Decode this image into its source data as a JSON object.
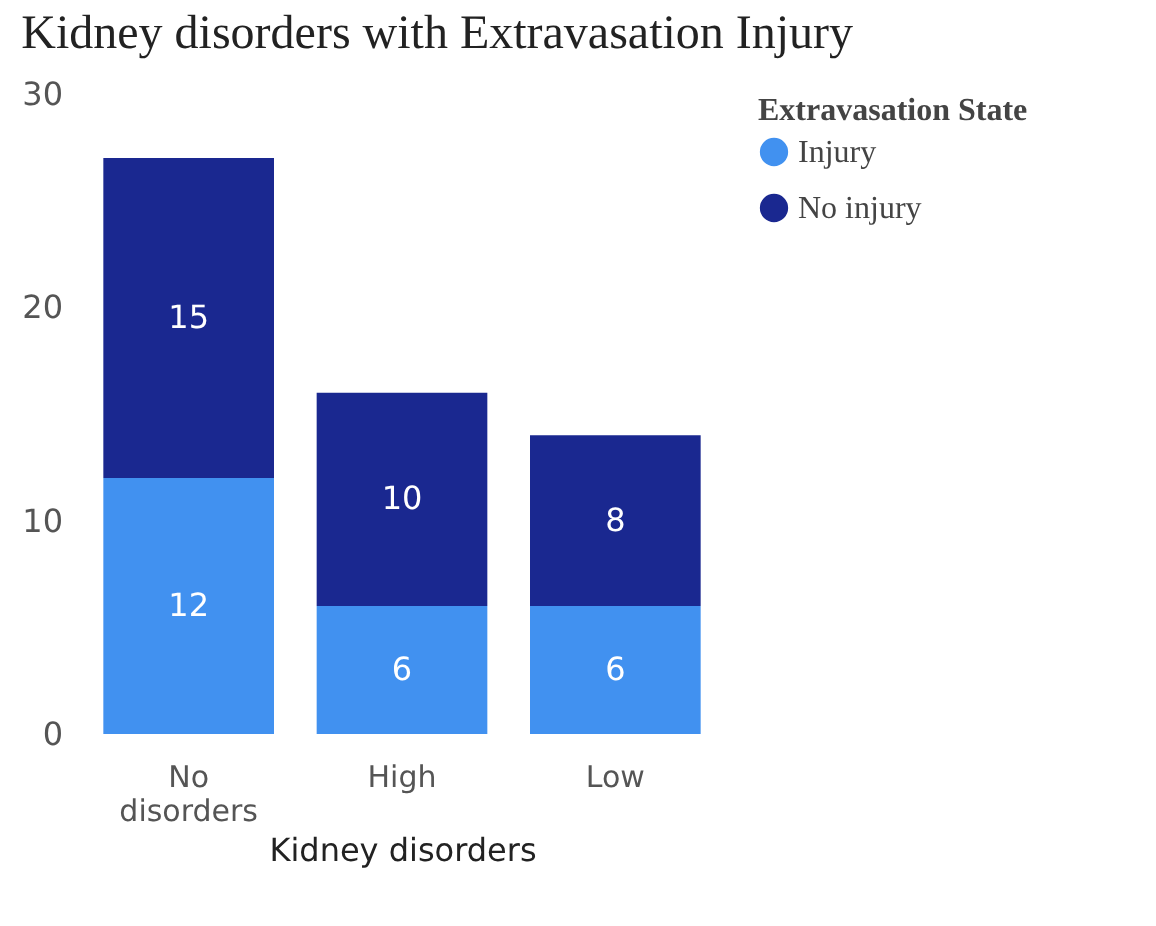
{
  "chart_data": {
    "type": "bar",
    "title": "Kidney disorders with Extravasation Injury",
    "xlabel": "Kidney disorders",
    "legend_title": "Extravasation State",
    "categories": [
      "No disorders",
      "High",
      "Low"
    ],
    "series": [
      {
        "name": "Injury",
        "color": "#4191f0",
        "values": [
          12,
          6,
          6
        ]
      },
      {
        "name": "No injury",
        "color": "#1a2890",
        "values": [
          15,
          10,
          8
        ]
      }
    ],
    "stacked": true,
    "ylim": [
      0,
      30
    ],
    "yticks": [
      0,
      10,
      20,
      30
    ],
    "grid": false,
    "legend": "top right",
    "data_labels": true
  }
}
